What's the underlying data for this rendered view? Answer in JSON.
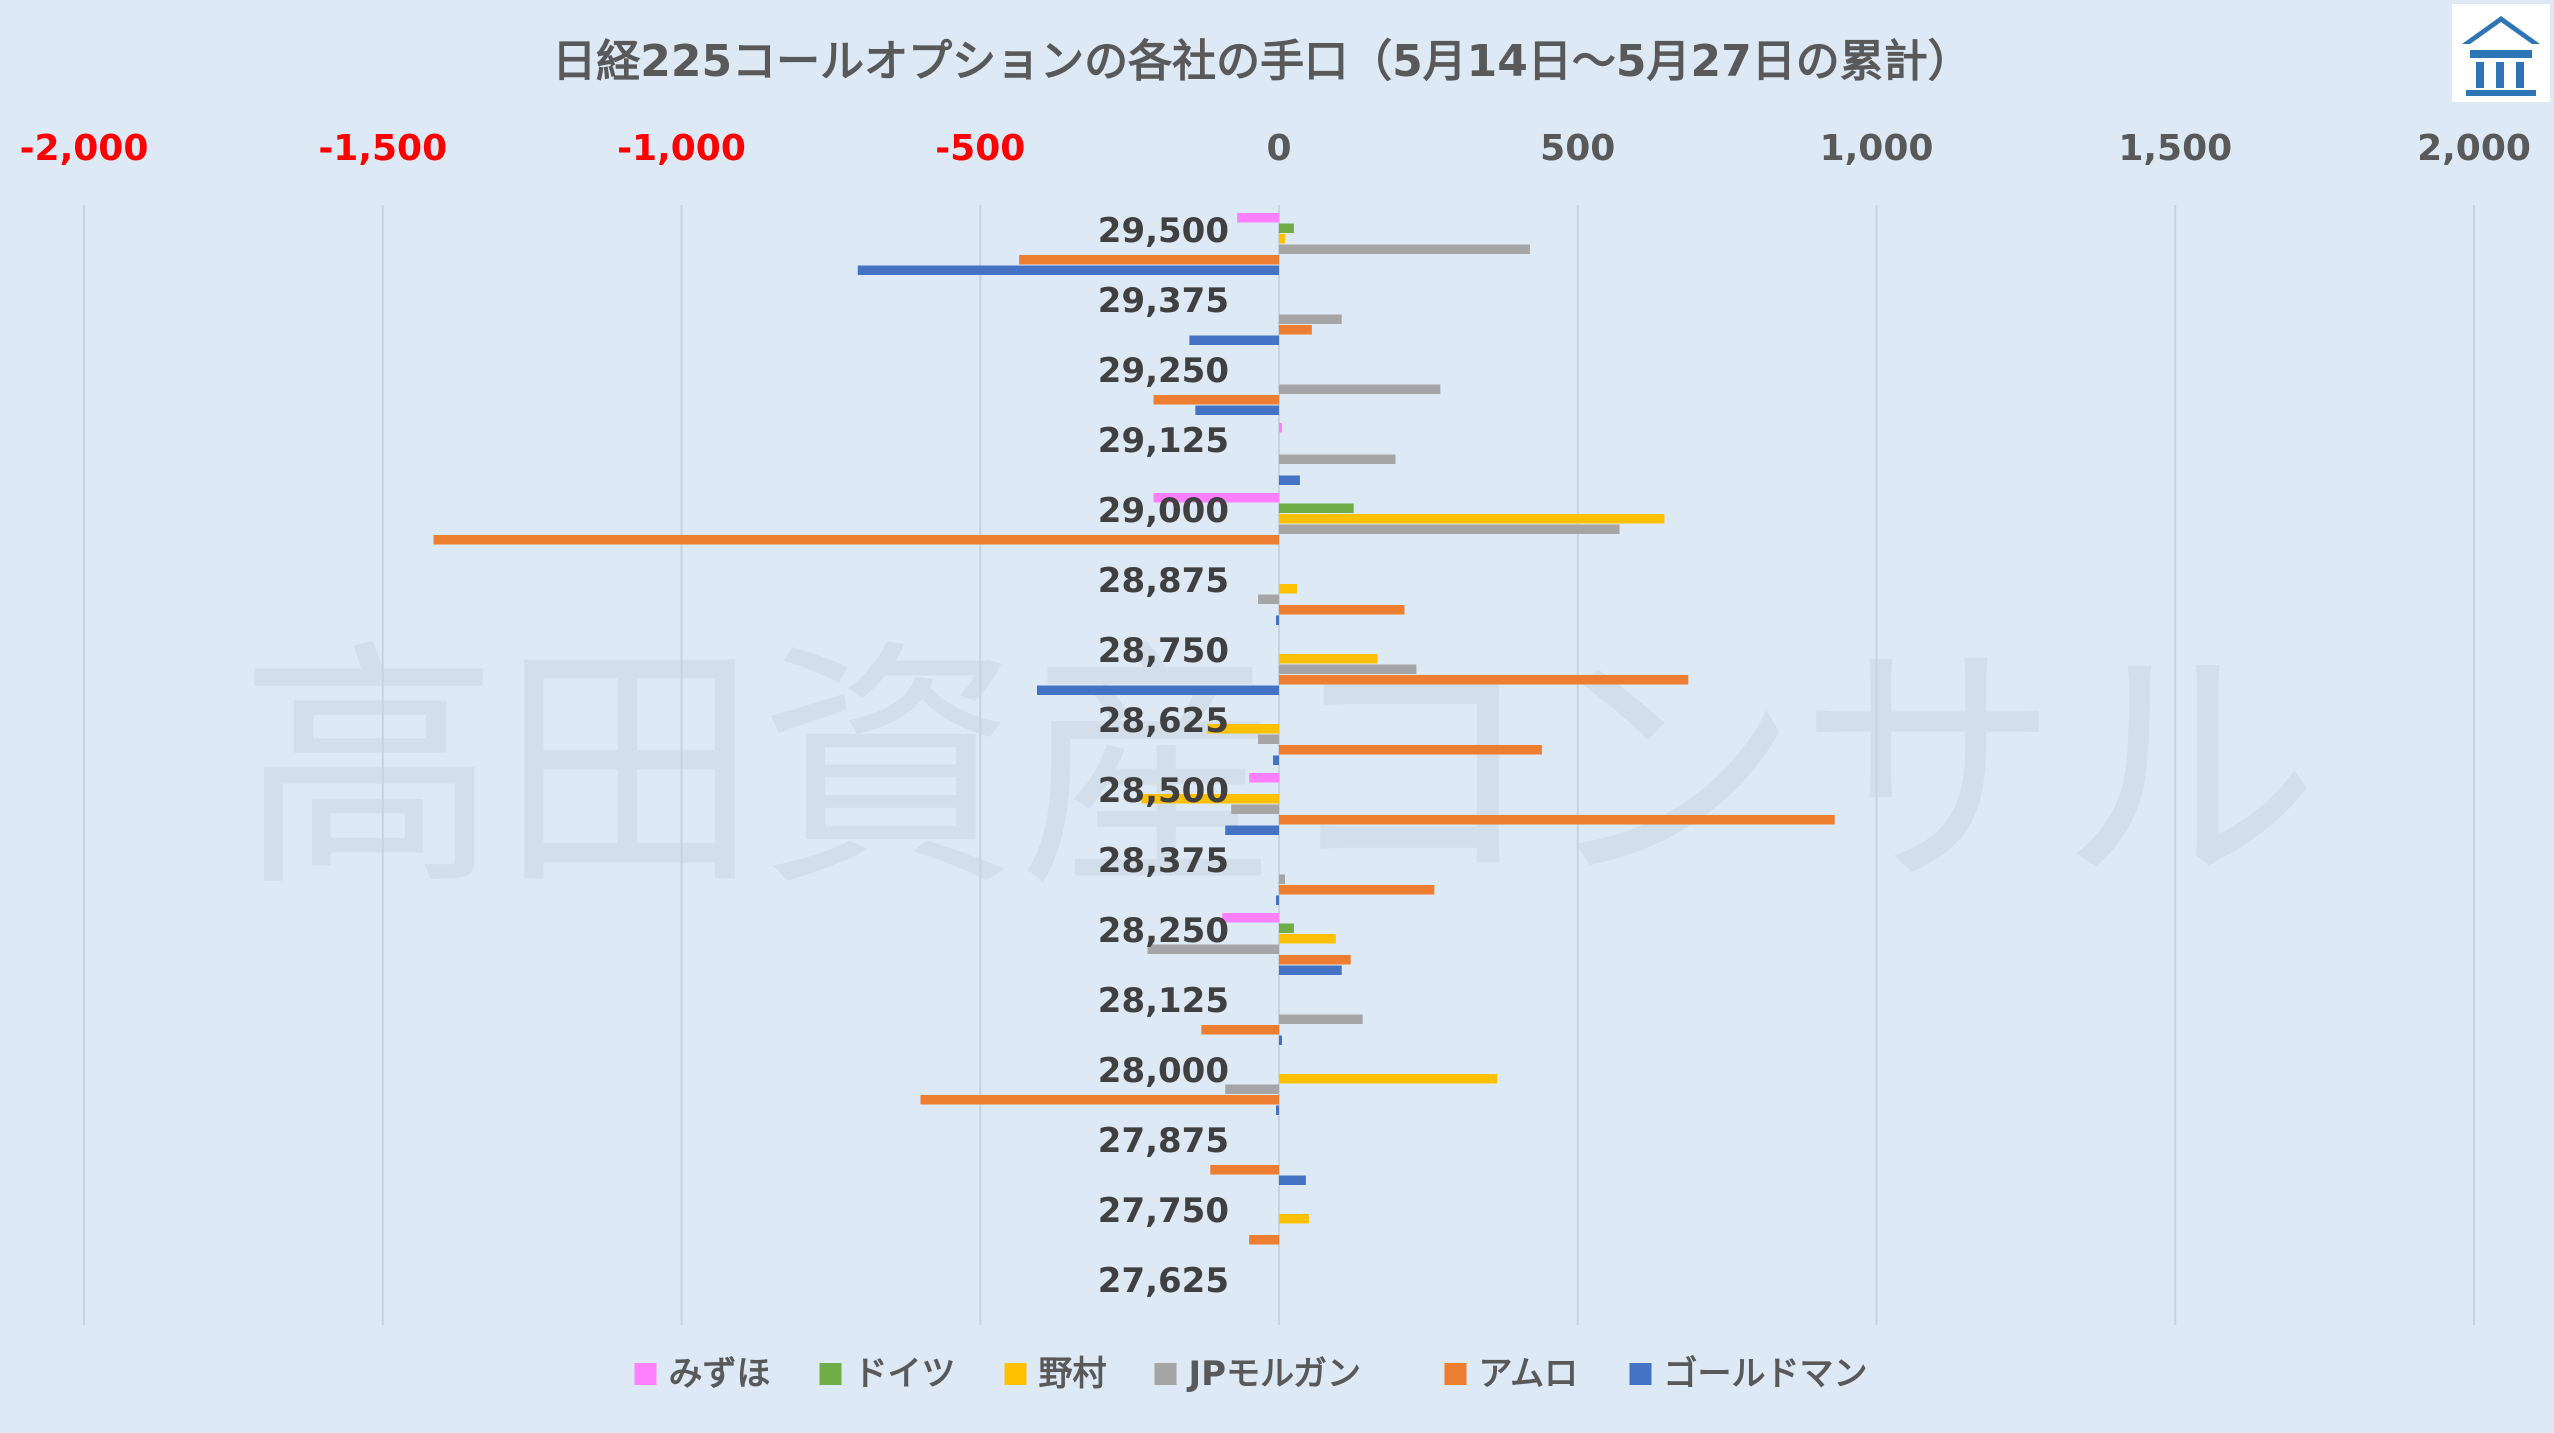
{
  "chart_data": {
    "type": "bar",
    "orientation": "horizontal",
    "title": "日経225コールオプションの各社の手口（5月14日～5月27日の累計）",
    "watermark": "高田資産コンサル",
    "x_ticks": [
      "-2,000",
      "-1,500",
      "-1,000",
      "-500",
      "0",
      "500",
      "1,000",
      "1,500",
      "2,000"
    ],
    "x_tick_values": [
      -2000,
      -1500,
      -1000,
      -500,
      0,
      500,
      1000,
      1500,
      2000
    ],
    "xlim": [
      -2000,
      2000
    ],
    "negative_tick_color": "#ff0000",
    "positive_tick_color": "#595959",
    "grid": true,
    "legend_position": "bottom",
    "categories": [
      "29,500",
      "29,375",
      "29,250",
      "29,125",
      "29,000",
      "28,875",
      "28,750",
      "28,625",
      "28,500",
      "28,375",
      "28,250",
      "28,125",
      "28,000",
      "27,875",
      "27,750",
      "27,625"
    ],
    "series": [
      {
        "name": "みずほ",
        "color": "#ff80ff",
        "values": [
          -70,
          0,
          0,
          5,
          -210,
          0,
          0,
          0,
          -50,
          0,
          -95,
          0,
          0,
          0,
          0,
          0
        ]
      },
      {
        "name": "ドイツ",
        "color": "#70ad47",
        "values": [
          25,
          0,
          0,
          0,
          125,
          0,
          0,
          0,
          0,
          0,
          25,
          0,
          0,
          0,
          0,
          0
        ]
      },
      {
        "name": "野村",
        "color": "#ffc000",
        "values": [
          10,
          0,
          0,
          0,
          645,
          30,
          165,
          -120,
          -230,
          0,
          95,
          0,
          365,
          0,
          50,
          0
        ]
      },
      {
        "name": "JPモルガン",
        "color": "#a5a5a5",
        "values": [
          420,
          105,
          270,
          195,
          570,
          -35,
          230,
          -35,
          -80,
          10,
          -220,
          140,
          -90,
          0,
          0,
          0
        ]
      },
      {
        "name": "アムロ",
        "color": "#ed7d31",
        "values": [
          -435,
          55,
          -210,
          0,
          -1415,
          210,
          685,
          440,
          930,
          260,
          120,
          -130,
          -600,
          -115,
          -50,
          0
        ]
      },
      {
        "name": "ゴールドマン",
        "color": "#4472c4",
        "values": [
          -705,
          -150,
          -140,
          35,
          0,
          -5,
          -405,
          -10,
          -90,
          -5,
          105,
          5,
          -5,
          45,
          0,
          0
        ]
      }
    ]
  }
}
